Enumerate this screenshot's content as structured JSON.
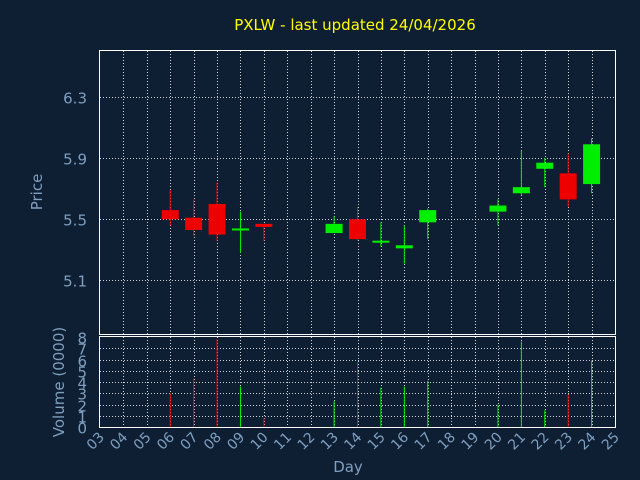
{
  "chart_data": {
    "type": "candlestick",
    "title": "PXLW - last updated 24/04/2026",
    "xlabel": "Day",
    "price_axis": {
      "label": "Price",
      "range": [
        4.75,
        6.6
      ],
      "ticks": [
        "5.1",
        "5.5",
        "5.9",
        "6.3"
      ]
    },
    "volume_axis": {
      "label": "Volume (0000)",
      "range": [
        0,
        8
      ],
      "ticks": [
        "0",
        "1",
        "2",
        "3",
        "4",
        "5",
        "6",
        "7",
        "8"
      ]
    },
    "x_range": [
      3,
      25
    ],
    "x_ticks": [
      "03",
      "04",
      "05",
      "06",
      "07",
      "08",
      "09",
      "10",
      "11",
      "12",
      "13",
      "14",
      "15",
      "16",
      "17",
      "18",
      "19",
      "20",
      "21",
      "22",
      "23",
      "24",
      "25"
    ],
    "grid": true,
    "colors": {
      "background": "#0e1f33",
      "up": "#00ee00",
      "down": "#ee0000",
      "title": "#ffff00",
      "axis_text": "#7f9fbf",
      "frame": "#ffffff",
      "grid": "#ffffff"
    },
    "candles": [
      {
        "day": 6,
        "open": 5.56,
        "high": 5.69,
        "low": 5.46,
        "close": 5.5,
        "volume": 3.0
      },
      {
        "day": 7,
        "open": 5.51,
        "high": 5.63,
        "low": 5.39,
        "close": 5.43,
        "volume": 4.3
      },
      {
        "day": 8,
        "open": 5.6,
        "high": 5.74,
        "low": 5.36,
        "close": 5.4,
        "volume": 7.8
      },
      {
        "day": 9,
        "open": 5.43,
        "high": 5.55,
        "low": 5.28,
        "close": 5.44,
        "volume": 3.6
      },
      {
        "day": 10,
        "open": 5.47,
        "high": 5.47,
        "low": 5.36,
        "close": 5.45,
        "volume": 0.8
      },
      {
        "day": 13,
        "open": 5.41,
        "high": 5.52,
        "low": 5.41,
        "close": 5.47,
        "volume": 2.3
      },
      {
        "day": 14,
        "open": 5.5,
        "high": 5.58,
        "low": 5.36,
        "close": 5.37,
        "volume": 5.8
      },
      {
        "day": 15,
        "open": 5.35,
        "high": 5.48,
        "low": 5.32,
        "close": 5.36,
        "volume": 3.5
      },
      {
        "day": 16,
        "open": 5.31,
        "high": 5.46,
        "low": 5.21,
        "close": 5.33,
        "volume": 3.6
      },
      {
        "day": 17,
        "open": 5.48,
        "high": 5.57,
        "low": 5.37,
        "close": 5.56,
        "volume": 4.1
      },
      {
        "day": 20,
        "open": 5.55,
        "high": 5.63,
        "low": 5.46,
        "close": 5.59,
        "volume": 2.0
      },
      {
        "day": 21,
        "open": 5.67,
        "high": 5.95,
        "low": 5.66,
        "close": 5.71,
        "volume": 7.6
      },
      {
        "day": 22,
        "open": 5.83,
        "high": 5.9,
        "low": 5.71,
        "close": 5.87,
        "volume": 1.5
      },
      {
        "day": 23,
        "open": 5.8,
        "high": 5.93,
        "low": 5.58,
        "close": 5.63,
        "volume": 2.9
      },
      {
        "day": 24,
        "open": 5.73,
        "high": 6.03,
        "low": 5.67,
        "close": 5.99,
        "volume": 5.9
      }
    ]
  }
}
